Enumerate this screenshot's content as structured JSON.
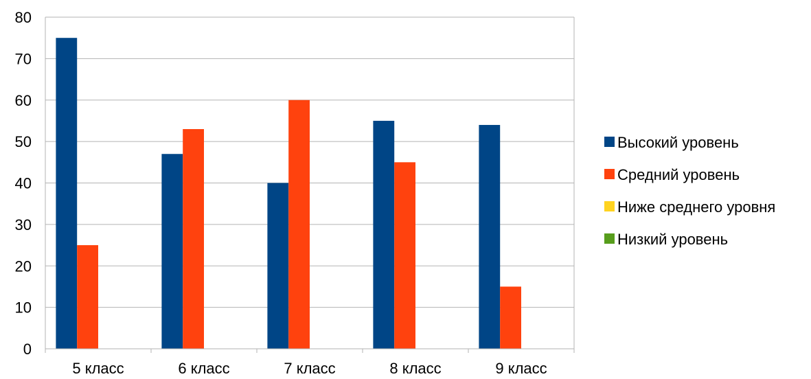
{
  "chart_data": {
    "type": "bar",
    "title": "",
    "xlabel": "",
    "ylabel": "",
    "categories": [
      "5 класс",
      "6 класс",
      "7 класс",
      "8 класс",
      "9 класс"
    ],
    "series": [
      {
        "name": "Высокий уровень",
        "color": "#004586",
        "values": [
          75,
          47,
          40,
          55,
          54
        ]
      },
      {
        "name": "Средний уровень",
        "color": "#ff420e",
        "values": [
          25,
          53,
          60,
          45,
          15
        ]
      },
      {
        "name": "Ниже среднего уровня",
        "color": "#ffd320",
        "values": [
          0,
          0,
          0,
          0,
          0
        ]
      },
      {
        "name": "Низкий уровень",
        "color": "#579d1c",
        "values": [
          0,
          0,
          0,
          0,
          0
        ]
      }
    ],
    "ylim": [
      0,
      80
    ],
    "yticks": [
      "0",
      "10",
      "20",
      "30",
      "40",
      "50",
      "60",
      "70",
      "80"
    ],
    "grid": true,
    "legend_position": "right"
  }
}
